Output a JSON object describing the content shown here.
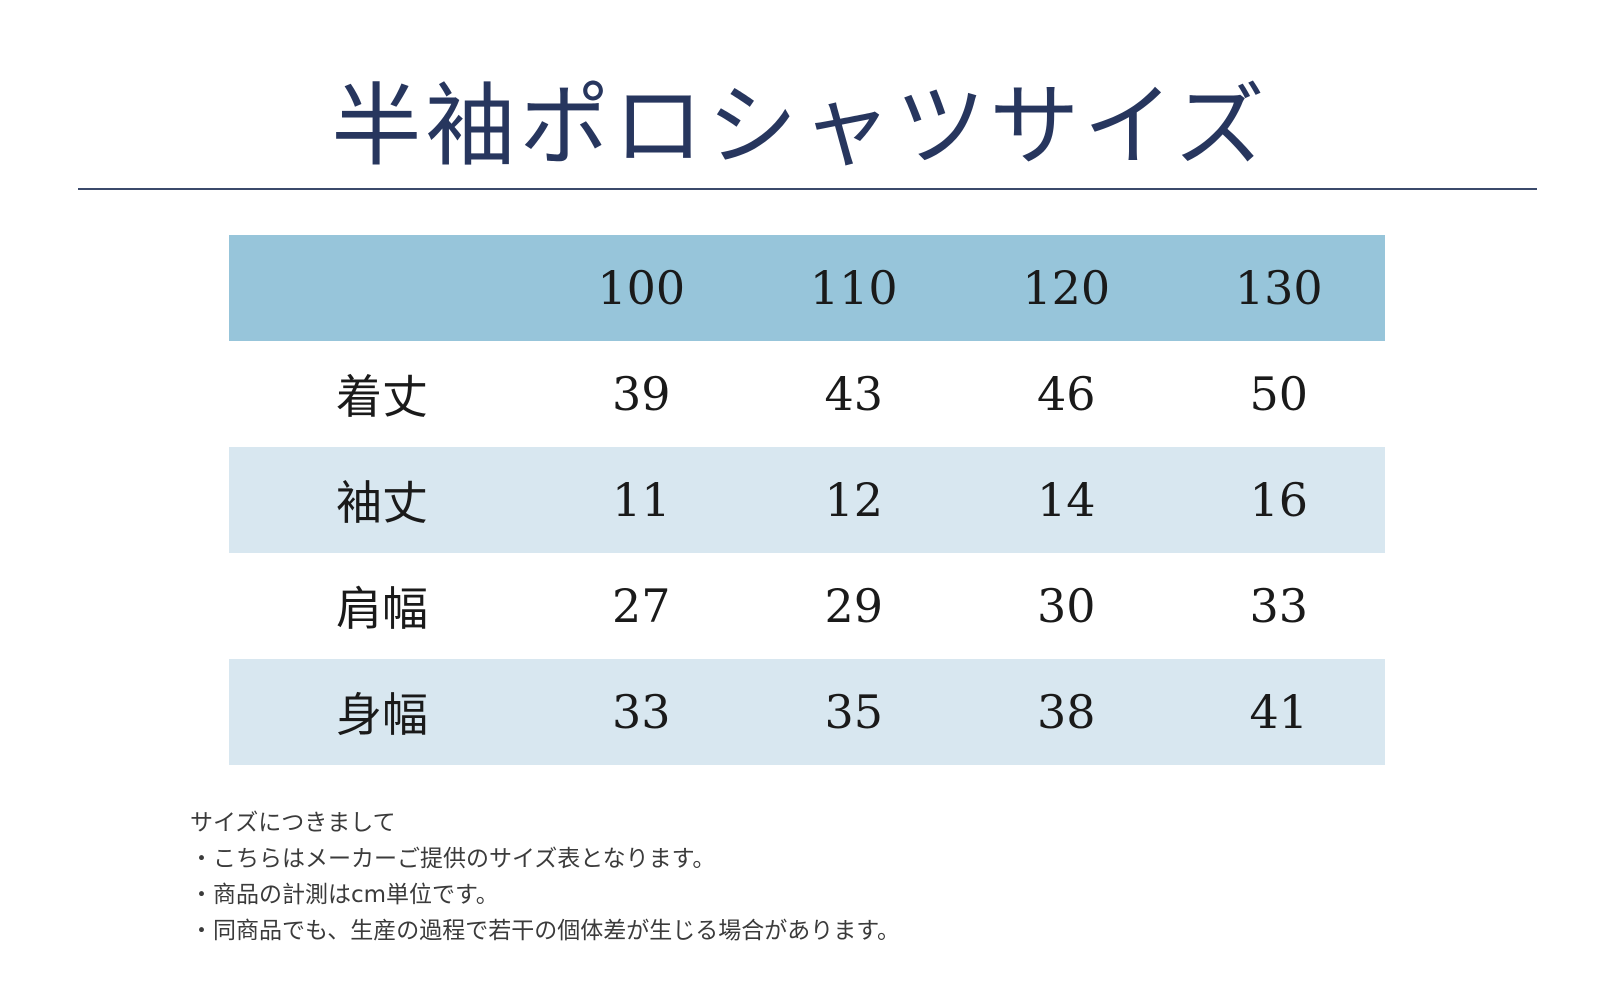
{
  "title": "半袖ポロシャツサイズ",
  "table": {
    "headers": [
      "",
      "100",
      "110",
      "120",
      "130"
    ],
    "rows": [
      {
        "label": "着丈",
        "values": [
          "39",
          "43",
          "46",
          "50"
        ]
      },
      {
        "label": "袖丈",
        "values": [
          "11",
          "12",
          "14",
          "16"
        ]
      },
      {
        "label": "肩幅",
        "values": [
          "27",
          "29",
          "30",
          "33"
        ]
      },
      {
        "label": "身幅",
        "values": [
          "33",
          "35",
          "38",
          "41"
        ]
      }
    ]
  },
  "notes": {
    "heading": "サイズにつきまして",
    "lines": [
      "・こちらはメーカーご提供のサイズ表となります。",
      "・商品の計測はcm単位です。",
      "・同商品でも、生産の過程で若干の個体差が生じる場合があります。"
    ]
  },
  "colors": {
    "title": "#27365e",
    "header_bg": "#97c5da",
    "stripe_bg": "#d8e7f0"
  }
}
